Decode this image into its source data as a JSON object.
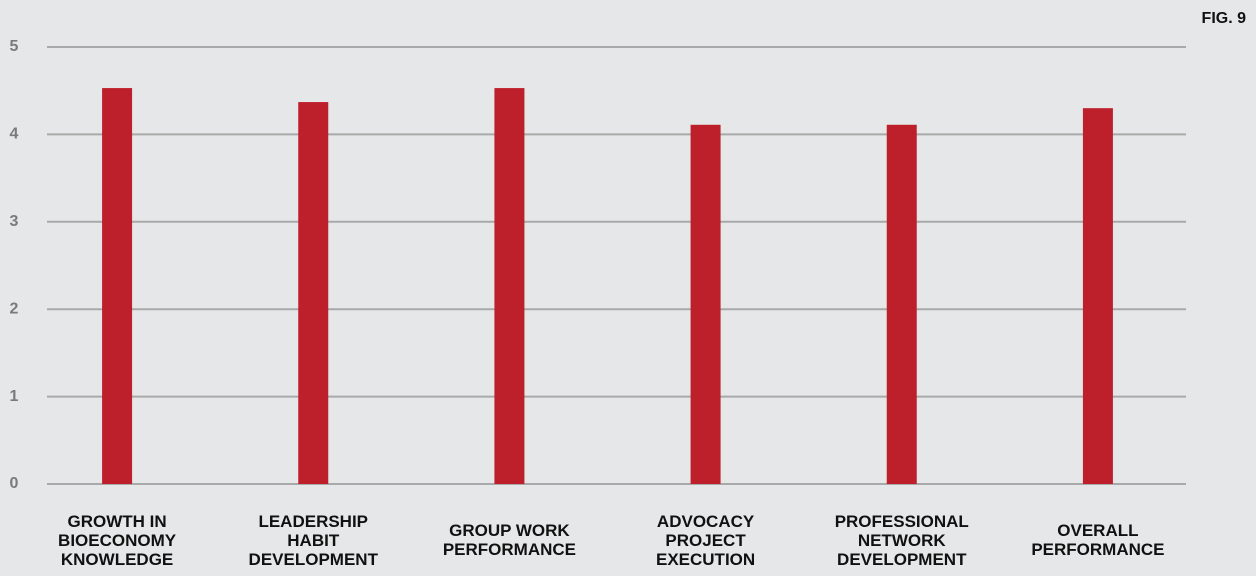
{
  "chart_data": {
    "type": "bar",
    "figure_label": "FIG. 9",
    "categories": [
      "GROWTH IN\nBIOECONOMY\nKNOWLEDGE",
      "LEADERSHIP\nHABIT\nDEVELOPMENT",
      "GROUP WORK\nPERFORMANCE",
      "ADVOCACY\nPROJECT\nEXECUTION",
      "PROFESSIONAL\nNETWORK\nDEVELOPMENT",
      "OVERALL\nPERFORMANCE"
    ],
    "values": [
      4.53,
      4.37,
      4.53,
      4.11,
      4.11,
      4.3
    ],
    "color": "#bd1f2b",
    "ylim": [
      0,
      5
    ],
    "yticks": [
      0,
      1,
      2,
      3,
      4,
      5
    ],
    "grid": true
  }
}
